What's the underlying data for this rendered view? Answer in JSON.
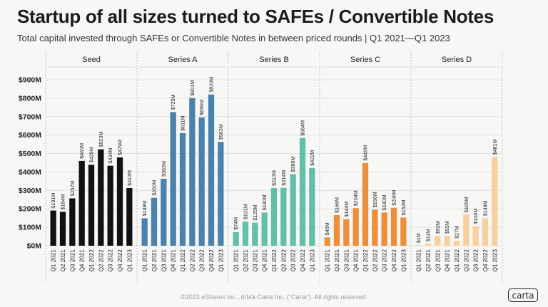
{
  "header": {
    "title": "Startup of all sizes turned to SAFEs / Convertible Notes",
    "subtitle": "Total capital invested through SAFEs or Convertible Notes in between priced rounds  |  Q1 2021—Q1 2023"
  },
  "footer": {
    "copyright": "©2023 eShares Inc., d/b/a Carta Inc. (“Carta”). All rights reserved.",
    "logo_text": "carta"
  },
  "chart_data": {
    "type": "bar",
    "title": "Startup of all sizes turned to SAFEs / Convertible Notes",
    "subtitle": "Total capital invested through SAFEs or Convertible Notes in between priced rounds  |  Q1 2021—Q1 2023",
    "categories": [
      "Q1 2021",
      "Q2 2021",
      "Q3 2021",
      "Q4 2021",
      "Q1 2022",
      "Q2 2022",
      "Q3 2022",
      "Q4 2022",
      "Q1 2023"
    ],
    "ylim": [
      0,
      900
    ],
    "yticks": [
      0,
      100,
      200,
      300,
      400,
      500,
      600,
      700,
      800,
      900
    ],
    "ytick_labels": [
      "$0M",
      "$100M",
      "$200M",
      "$300M",
      "$400M",
      "$500M",
      "$600M",
      "$700M",
      "$800M",
      "$900M"
    ],
    "grid": true,
    "panels": [
      {
        "name": "Seed",
        "color": "#111111",
        "values": [
          191,
          184,
          257,
          460,
          439,
          523,
          434,
          479,
          313
        ],
        "labels": [
          "$191M",
          "$184M",
          "$257M",
          "$460M",
          "$439M",
          "$523M",
          "$434M",
          "$479M",
          "$313M"
        ]
      },
      {
        "name": "Series A",
        "color": "#4a81ad",
        "values": [
          149,
          260,
          363,
          725,
          611,
          801,
          696,
          820,
          563
        ],
        "labels": [
          "$149M",
          "$260M",
          "$363M",
          "$725M",
          "$611M",
          "$801M",
          "$696M",
          "$820M",
          "$563M"
        ]
      },
      {
        "name": "Series B",
        "color": "#62bfa8",
        "values": [
          74,
          131,
          125,
          180,
          313,
          314,
          388,
          584,
          422
        ],
        "labels": [
          "$74M",
          "$131M",
          "$125M",
          "$180M",
          "$313M",
          "$314M",
          "$388M",
          "$584M",
          "$422M"
        ]
      },
      {
        "name": "Series C",
        "color": "#ee8e3a",
        "values": [
          45,
          166,
          144,
          204,
          449,
          196,
          180,
          206,
          153
        ],
        "labels": [
          "$45M",
          "$166M",
          "$144M",
          "$204M",
          "$449M",
          "$196M",
          "$180M",
          "$206M",
          "$153M"
        ]
      },
      {
        "name": "Series D",
        "color": "#f9cf9f",
        "values": [
          1,
          11,
          53,
          53,
          27,
          169,
          106,
          149,
          481
        ],
        "labels": [
          "$1M",
          "$11M",
          "$53M",
          "$53M",
          "$27M",
          "$169M",
          "$106M",
          "$149M",
          "$481M"
        ]
      }
    ]
  }
}
